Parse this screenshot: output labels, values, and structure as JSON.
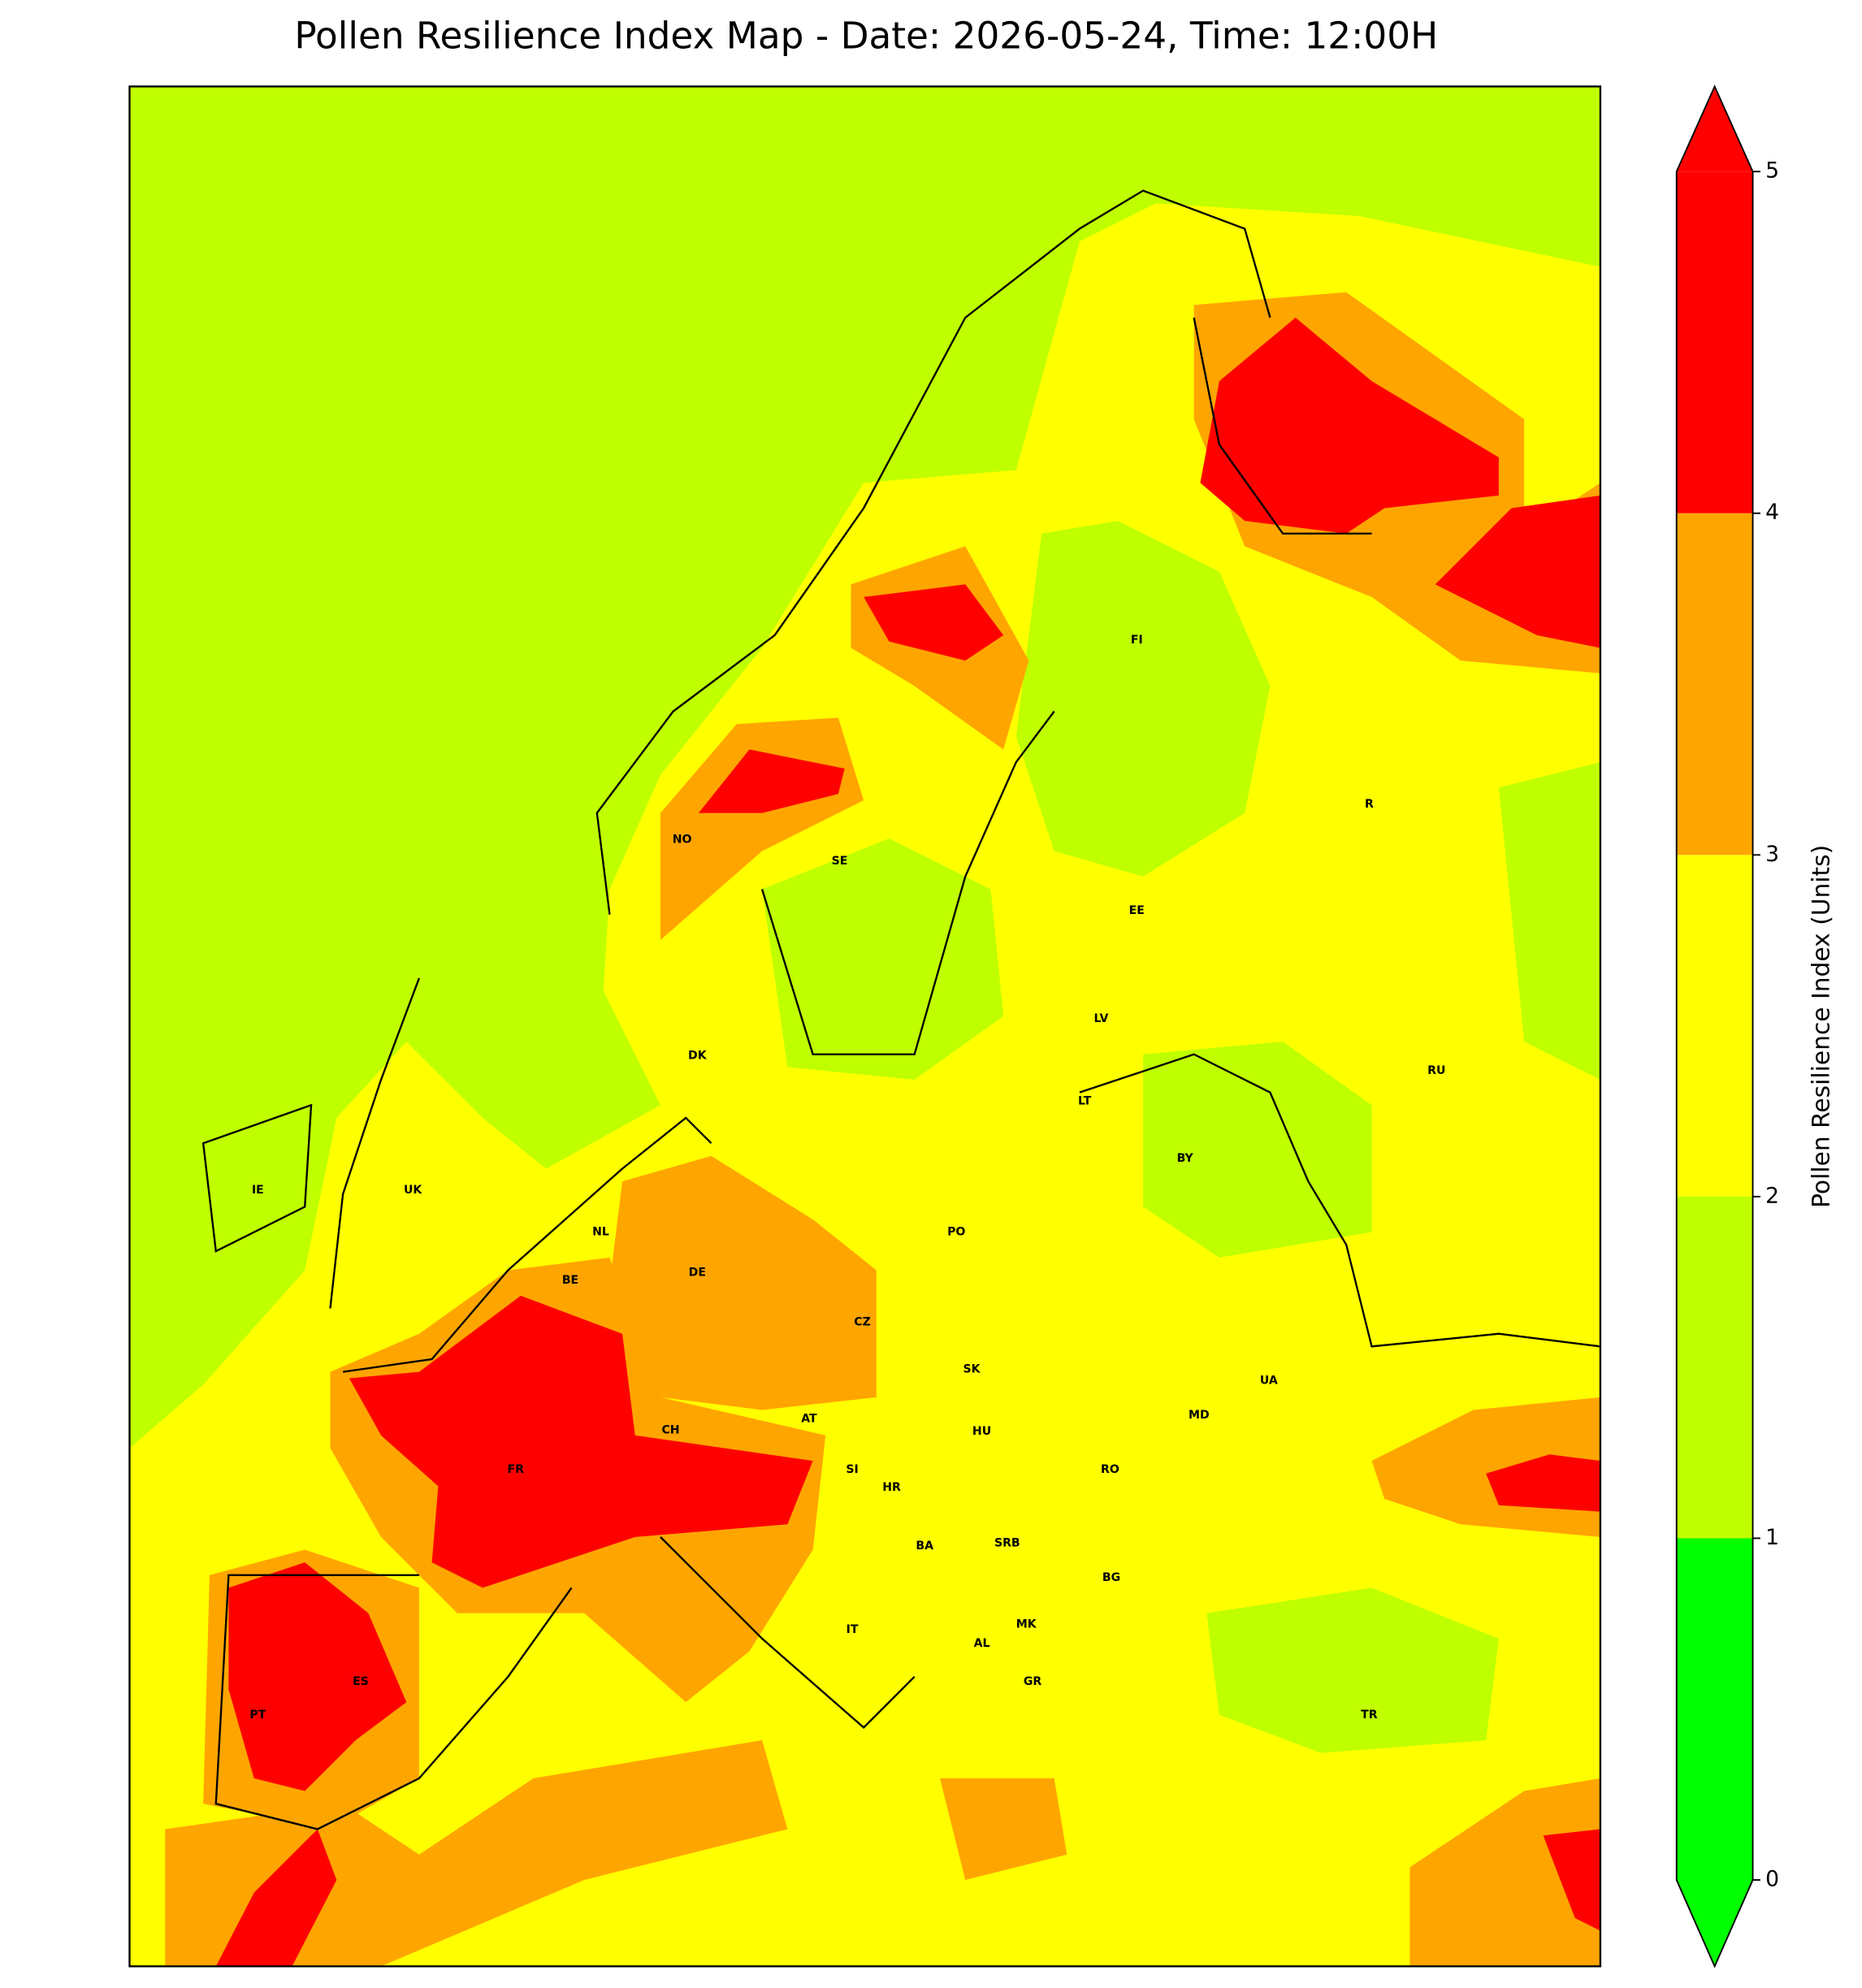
{
  "chart_data": {
    "type": "map",
    "title": "Pollen Resilience Index Map - Date: 2026-05-24, Time: 12:00H",
    "colorbar": {
      "label": "Pollen Resilience Index (Units)",
      "ticks": [
        0,
        1,
        2,
        3,
        4,
        5
      ],
      "colors": [
        "#00ff00",
        "#bfff00",
        "#ffff00",
        "#ffa500",
        "#ff0000"
      ],
      "under_color": "#00ff00",
      "over_color": "#ff0000"
    },
    "country_labels": [
      "NO",
      "SE",
      "FI",
      "EE",
      "LV",
      "LT",
      "BY",
      "RU",
      "R",
      "DK",
      "IE",
      "UK",
      "NL",
      "BE",
      "DE",
      "PO",
      "CZ",
      "SK",
      "UA",
      "AT",
      "CH",
      "HU",
      "MD",
      "FR",
      "SI",
      "HR",
      "RO",
      "BA",
      "SRB",
      "BG",
      "IT",
      "MK",
      "AL",
      "ES",
      "GR",
      "TR",
      "PT"
    ]
  }
}
